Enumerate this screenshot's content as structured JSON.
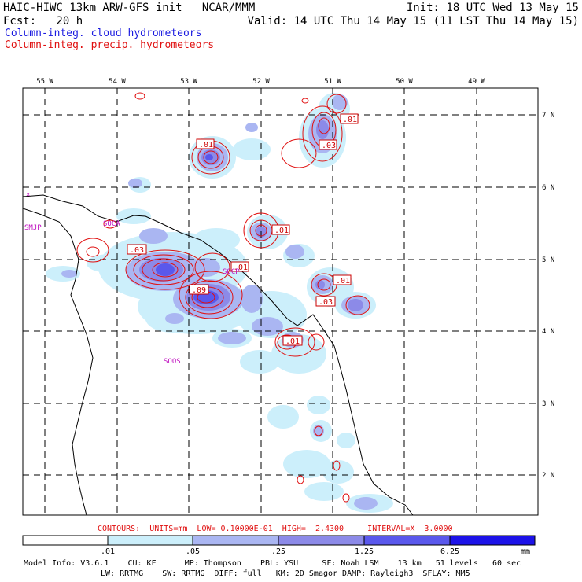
{
  "header": {
    "line1_left": "HAIC-HIWC 13km ARW-GFS init   NCAR/MMM",
    "line1_right": "Init: 18 UTC Wed 13 May 15",
    "line2_left": "Fcst:   20 h",
    "line2_right": "Valid: 14 UTC Thu 14 May 15 (11 LST Thu 14 May 15)",
    "legend_cloud": "Column-integ. cloud hydrometeors",
    "legend_precip": "Column-integ. precip. hydrometeors"
  },
  "axes": {
    "lon_labels": [
      "55 W",
      "54 W",
      "53 W",
      "52 W",
      "51 W",
      "50 W",
      "49 W"
    ],
    "lat_labels": [
      "7 N",
      "6 N",
      "5 N",
      "4 N",
      "3 N",
      "2 N"
    ]
  },
  "stations": [
    "SMJP",
    "SOCA",
    "SOCP",
    "SOOS"
  ],
  "contour_labels": [
    ".01",
    ".01",
    ".03",
    ".01",
    ".03",
    ".01",
    ".01",
    ".09",
    ".03",
    ".01"
  ],
  "contour_info": "CONTOURS:  UNITS=mm  LOW= 0.10000E-01  HIGH=  2.4300     INTERVAL=X  3.0000",
  "colorbar": {
    "ticks": [
      ".01",
      ".05",
      ".25",
      "1.25",
      "6.25"
    ],
    "unit": "mm",
    "colors": [
      "#ffffff",
      "#cceffb",
      "#aab6f2",
      "#8c8ae8",
      "#5a58ec",
      "#1c12e8"
    ]
  },
  "model_info": {
    "line1": "Model Info: V3.6.1    CU: KF      MP: Thompson    PBL: YSU     SF: Noah LSM    13 km   51 levels   60 sec",
    "line2": "LW: RRTMG    SW: RRTMG  DIFF: full   KM: 2D Smagor DAMP: Rayleigh3  SFLAY: MM5"
  }
}
